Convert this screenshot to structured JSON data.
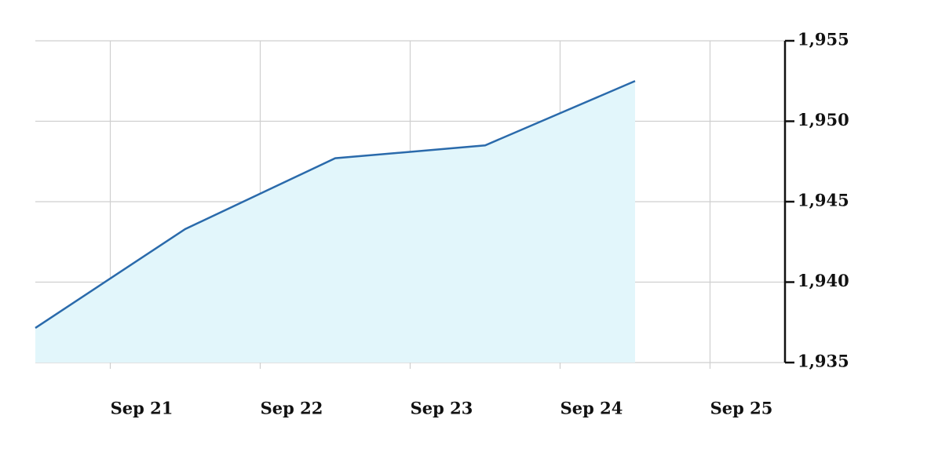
{
  "chart_data": {
    "type": "area",
    "x": [
      20.5,
      21.5,
      22.5,
      23.5,
      24.5
    ],
    "values": [
      1937.15,
      1943.3,
      1947.7,
      1948.5,
      1952.5
    ],
    "color": "#2a6aab",
    "fill_color": "#e2f6fb",
    "xlim": [
      20.5,
      25.5
    ],
    "xticks": [
      {
        "value": 21,
        "label": "Sep 21"
      },
      {
        "value": 22,
        "label": "Sep 22"
      },
      {
        "value": 23,
        "label": "Sep 23"
      },
      {
        "value": 24,
        "label": "Sep 24"
      },
      {
        "value": 25,
        "label": "Sep 25"
      }
    ],
    "ylim": [
      1935,
      1955
    ],
    "yticks": [
      {
        "value": 1935,
        "label": "1,935"
      },
      {
        "value": 1940,
        "label": "1,940"
      },
      {
        "value": 1945,
        "label": "1,945"
      },
      {
        "value": 1950,
        "label": "1,950"
      },
      {
        "value": 1955,
        "label": "1,955"
      }
    ],
    "grid": true,
    "y_axis_side": "right"
  }
}
